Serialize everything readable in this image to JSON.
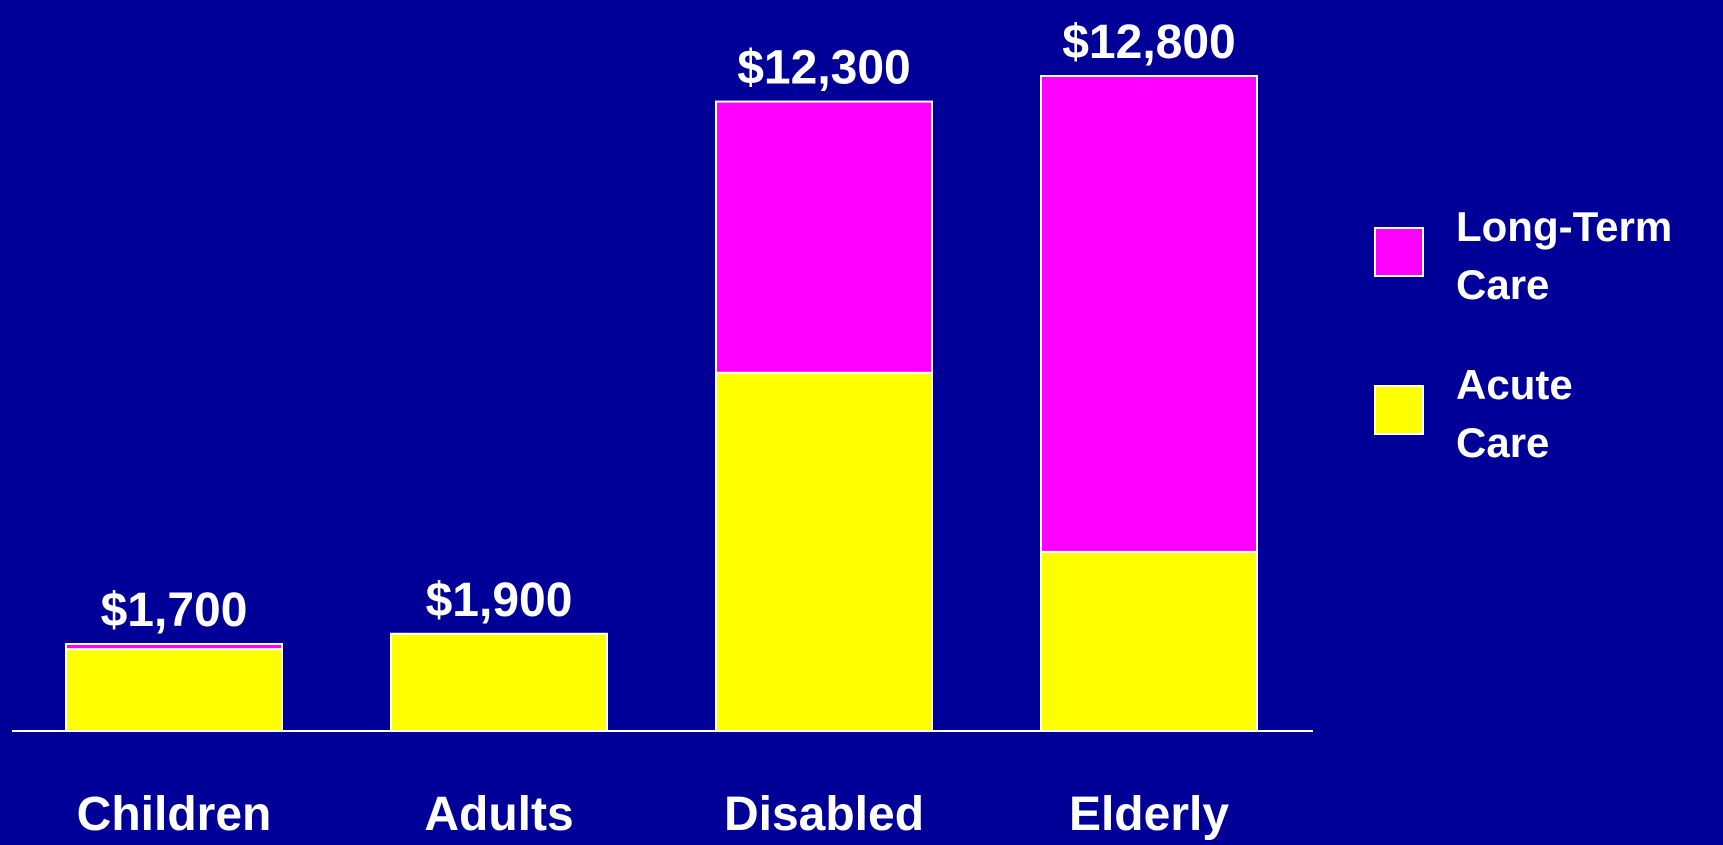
{
  "colors": {
    "background": "#000099",
    "long_term_care": "#ff00ff",
    "acute_care": "#ffff00",
    "outline": "#ffffff",
    "text": "#ffffff"
  },
  "chart_data": {
    "type": "bar",
    "stacked": true,
    "categories": [
      "Children",
      "Adults",
      "Disabled",
      "Elderly"
    ],
    "series": [
      {
        "name": "Acute Care",
        "color": "#ffff00",
        "values": [
          1600,
          1900,
          7000,
          3500
        ]
      },
      {
        "name": "Long-Term Care",
        "color": "#ff00ff",
        "values": [
          100,
          0,
          5300,
          9300
        ]
      }
    ],
    "totals": [
      1700,
      1900,
      12300,
      12800
    ],
    "total_labels": [
      "$1,700",
      "$1,900",
      "$12,300",
      "$12,800"
    ],
    "legend": {
      "position": "right",
      "items": [
        {
          "lines": [
            "Long-Term",
            "Care"
          ],
          "color": "#ff00ff"
        },
        {
          "lines": [
            "Acute",
            "Care"
          ],
          "color": "#ffff00"
        }
      ]
    },
    "title": "",
    "xlabel": "",
    "ylabel": "",
    "ylim": [
      0,
      12800
    ],
    "grid": false
  }
}
